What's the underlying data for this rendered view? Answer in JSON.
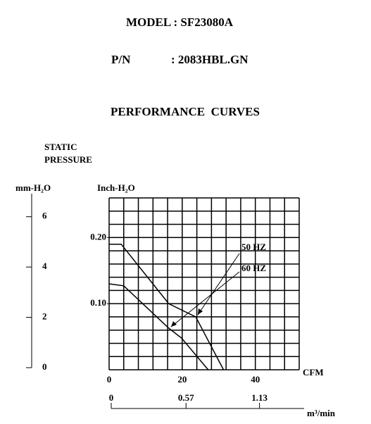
{
  "header": {
    "model": "MODEL : SF23080A",
    "pn_label": "P/N",
    "pn_value": ": 2083HBL.GN"
  },
  "chart_data": {
    "type": "line",
    "title": "PERFORMANCE  CURVES",
    "y_label_lines": [
      "STATIC",
      "PRESSURE"
    ],
    "y_unit": "Inch-H₂O",
    "y2_unit": "mm-H₂O",
    "x_unit": "CFM",
    "x2_unit": "m³/min",
    "xlim": [
      0,
      52
    ],
    "xticks": [
      0,
      20,
      40
    ],
    "ylim": [
      0,
      0.26
    ],
    "yticks": [
      {
        "value": 0.1,
        "label": "0.10"
      },
      {
        "value": 0.2,
        "label": "0.20"
      }
    ],
    "y2lim": [
      0,
      7
    ],
    "y2ticks": [
      0,
      2,
      4,
      6
    ],
    "x2lim": [
      0,
      1.47
    ],
    "x2ticks": [
      0,
      0.57,
      1.13
    ],
    "grid": true,
    "color": "#000000",
    "series": [
      {
        "name": "50 HZ",
        "x": [
          0,
          3.3,
          16.3,
          23.7,
          31.3
        ],
        "values": [
          0.19,
          0.19,
          0.1,
          0.08,
          0
        ]
      },
      {
        "name": "60 HZ",
        "x": [
          0,
          4,
          16.3,
          19.8,
          27.1
        ],
        "values": [
          0.13,
          0.127,
          0.063,
          0.048,
          0
        ]
      }
    ]
  }
}
